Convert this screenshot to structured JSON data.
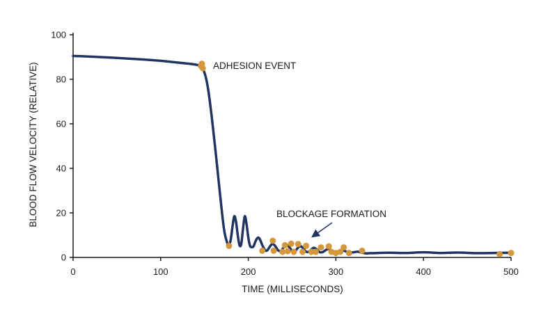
{
  "chart_data": {
    "type": "line",
    "title": "",
    "xlabel": "TIME (MILLISECONDS)",
    "ylabel": "BLOOD FLOW VELOCITY (RELATIVE)",
    "xlim": [
      0,
      500
    ],
    "ylim": [
      0,
      100
    ],
    "x_ticks": [
      0,
      100,
      200,
      300,
      400,
      500
    ],
    "y_ticks": [
      0,
      20,
      40,
      60,
      80,
      100
    ],
    "grid": false,
    "colors": {
      "line": "#1f3460",
      "points": "#d4973b",
      "axis": "#1a1a1a",
      "arrow": "#1f3460"
    },
    "series": [
      {
        "kind": "line",
        "x": [
          0,
          20,
          50,
          80,
          100,
          120,
          140,
          146,
          150,
          154,
          158,
          162,
          166,
          170,
          173,
          176,
          178,
          180,
          182,
          184,
          186,
          188,
          190,
          192,
          194,
          196,
          198,
          200,
          202,
          204,
          206,
          208,
          210,
          212,
          214,
          216,
          218,
          220,
          222,
          224,
          226,
          228,
          230,
          232,
          234,
          236,
          238,
          240,
          242,
          244,
          246,
          248,
          250,
          252,
          254,
          256,
          258,
          260,
          262,
          264,
          266,
          268,
          270,
          272,
          274,
          276,
          278,
          280,
          282,
          285,
          288,
          291,
          294,
          297,
          300,
          303,
          306,
          309,
          312,
          315,
          320,
          325,
          330,
          335,
          340,
          360,
          380,
          400,
          420,
          440,
          460,
          480,
          500
        ],
        "y": [
          90.5,
          90.2,
          89.6,
          88.9,
          88.3,
          87.5,
          86.6,
          85.5,
          83,
          76,
          64,
          50,
          35,
          20,
          11,
          6.5,
          5.5,
          8,
          14,
          18.5,
          16,
          10,
          5.5,
          6,
          13,
          18.5,
          15,
          9,
          5.2,
          4.6,
          5,
          7,
          8.5,
          8.8,
          7.5,
          5.5,
          4,
          3,
          3.3,
          4.5,
          5.6,
          6,
          5.5,
          4.3,
          3.2,
          2.8,
          3.2,
          4.3,
          5.2,
          5.6,
          5,
          4,
          3,
          2.6,
          3,
          4,
          4.8,
          5,
          4.4,
          3.4,
          2.6,
          2.4,
          2.9,
          3.6,
          4.2,
          4.2,
          3.6,
          2.8,
          2.3,
          2.4,
          3.2,
          3.8,
          3.4,
          2.7,
          2.3,
          2.5,
          3.0,
          3.1,
          2.6,
          2.2,
          2.3,
          2.6,
          2.1,
          1.8,
          1.9,
          2.1,
          2.0,
          2.3,
          2.0,
          2.2,
          1.9,
          2.0,
          2.1
        ]
      },
      {
        "kind": "scatter",
        "x": [
          146,
          147,
          148,
          178,
          216,
          228,
          229,
          239,
          242,
          245,
          249,
          252,
          257,
          262,
          266,
          272,
          277,
          283,
          292,
          295,
          300,
          305,
          309,
          315,
          330,
          487,
          500
        ],
        "y": [
          86,
          87,
          85,
          5.2,
          3,
          7.5,
          3,
          2.5,
          5.5,
          2.8,
          6.2,
          2.5,
          6,
          2.5,
          5.2,
          2.5,
          2.5,
          4.5,
          5,
          2.5,
          2,
          2.5,
          4.5,
          2,
          3,
          1.5,
          2
        ]
      }
    ],
    "annotations": [
      {
        "text": "ADHESION EVENT",
        "x": 148,
        "y": 86
      },
      {
        "text": "BLOCKAGE FORMATION",
        "x": 270,
        "y": 8
      }
    ]
  }
}
